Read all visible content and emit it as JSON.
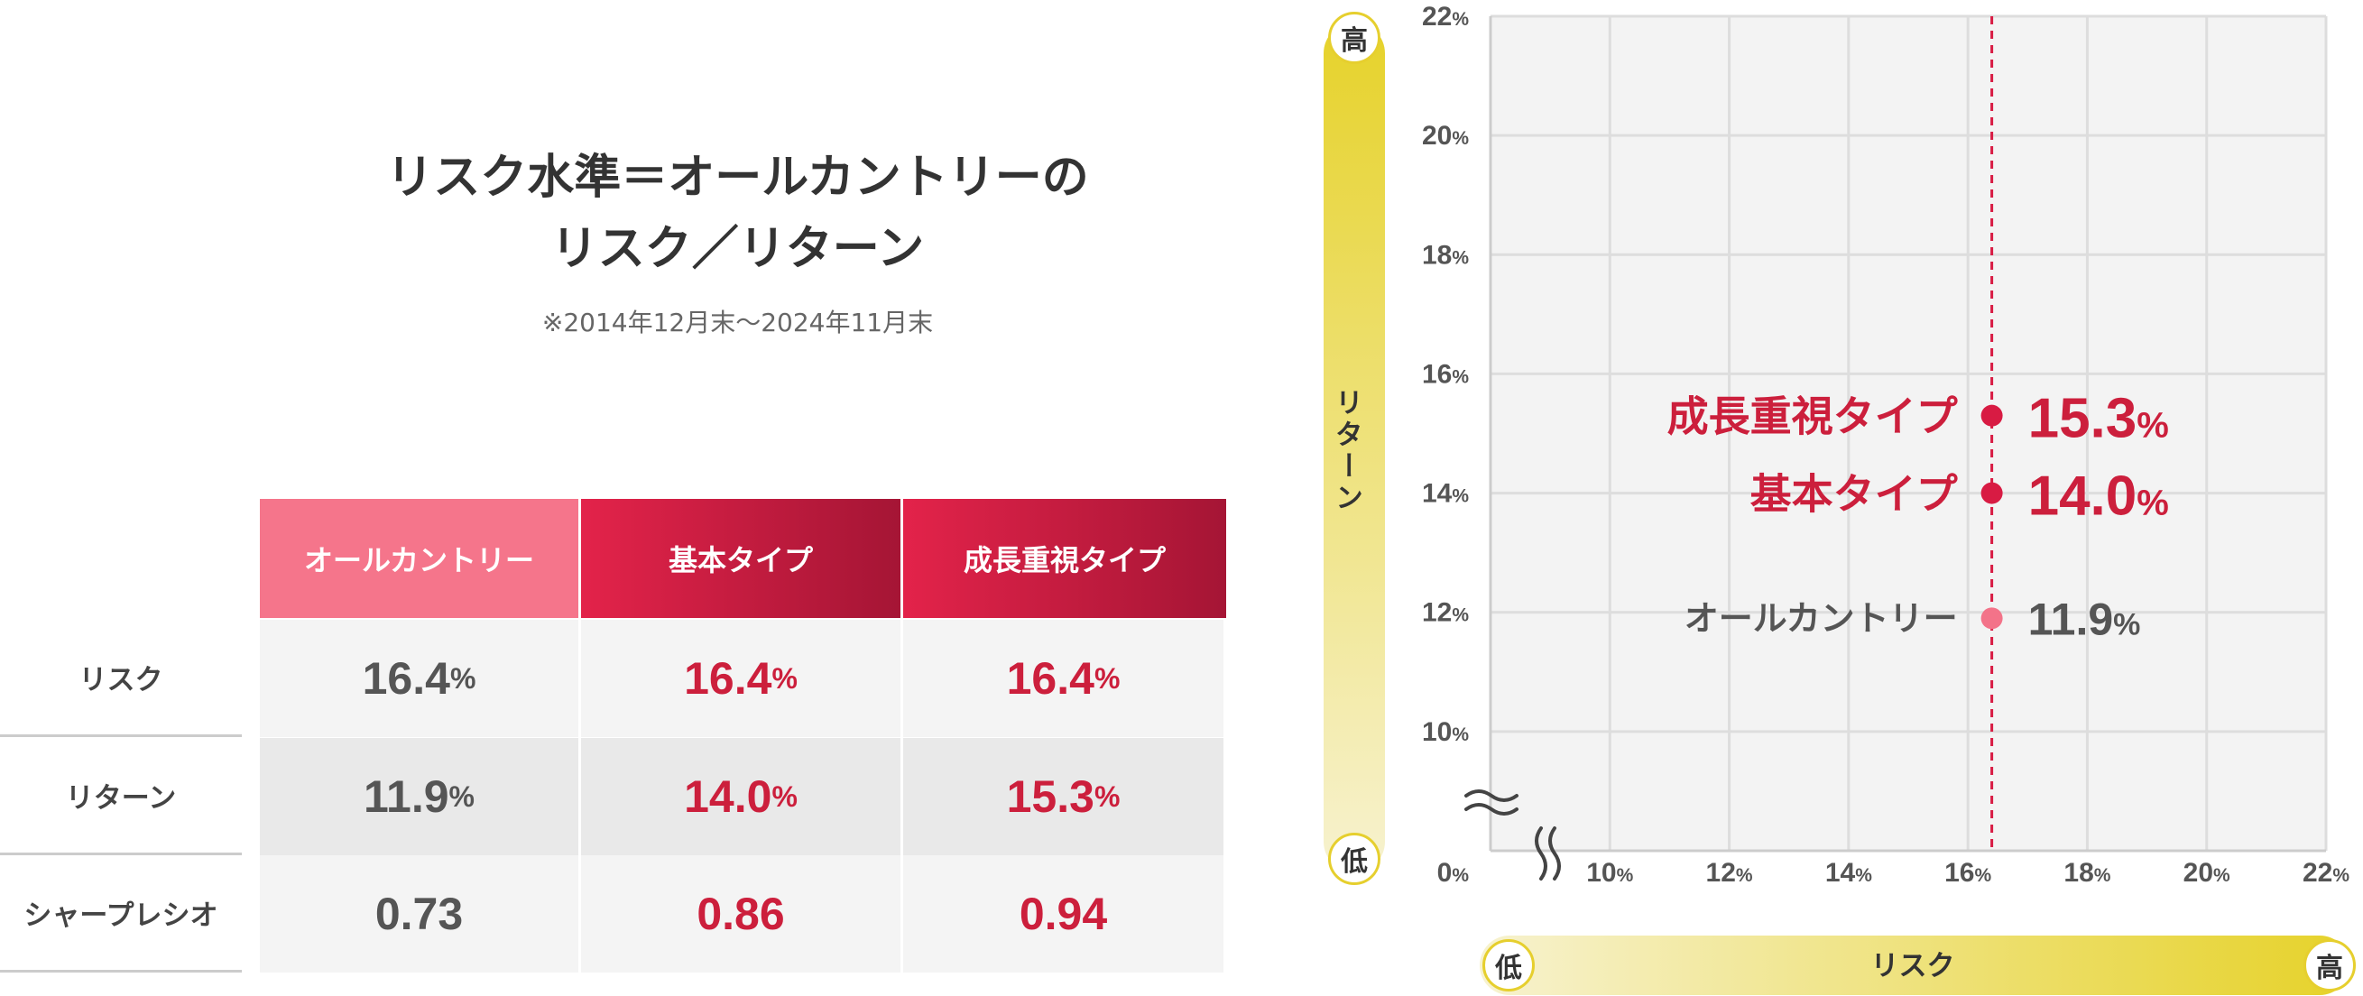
{
  "title": {
    "line1": "リスク水準＝オールカントリーの",
    "line2": "リスク／リターン",
    "note": "※2014年12月末〜2024年11月末"
  },
  "table": {
    "headers": [
      "オールカントリー",
      "基本タイプ",
      "成長重視タイプ"
    ],
    "rows": [
      {
        "label": "リスク",
        "values": [
          "16.4",
          "16.4",
          "16.4"
        ],
        "suffix": "%"
      },
      {
        "label": "リターン",
        "values": [
          "11.9",
          "14.0",
          "15.3"
        ],
        "suffix": "%"
      },
      {
        "label": "シャープレシオ",
        "values": [
          "0.73",
          "0.86",
          "0.94"
        ],
        "suffix": ""
      }
    ]
  },
  "axes": {
    "y_title": "リターン",
    "x_title": "リスク",
    "high": "高",
    "low": "低"
  },
  "chart_data": {
    "type": "scatter",
    "xlabel": "リスク",
    "ylabel": "リターン",
    "xlim": [
      8,
      22
    ],
    "ylim": [
      8,
      22
    ],
    "x_ticks": [
      "10%",
      "12%",
      "14%",
      "16%",
      "18%",
      "20%",
      "22%"
    ],
    "y_ticks": [
      "0%",
      "10%",
      "12%",
      "14%",
      "16%",
      "18%",
      "20%",
      "22%"
    ],
    "axis_break": true,
    "grid": true,
    "reference_line_x": 16.4,
    "series": [
      {
        "name": "成長重視タイプ",
        "x": 16.4,
        "y": 15.3,
        "label": "15.3",
        "color": "#d81b43"
      },
      {
        "name": "基本タイプ",
        "x": 16.4,
        "y": 14.0,
        "label": "14.0",
        "color": "#d81b43"
      },
      {
        "name": "オールカントリー",
        "x": 16.4,
        "y": 11.9,
        "label": "11.9",
        "color": "#f37389"
      }
    ]
  },
  "colors": {
    "header_allcountry": "#f5758b",
    "header_red_start": "#e3234a",
    "header_red_end": "#a51535",
    "accent_red": "#cc1f3c",
    "yellow": "#e8d22a"
  }
}
